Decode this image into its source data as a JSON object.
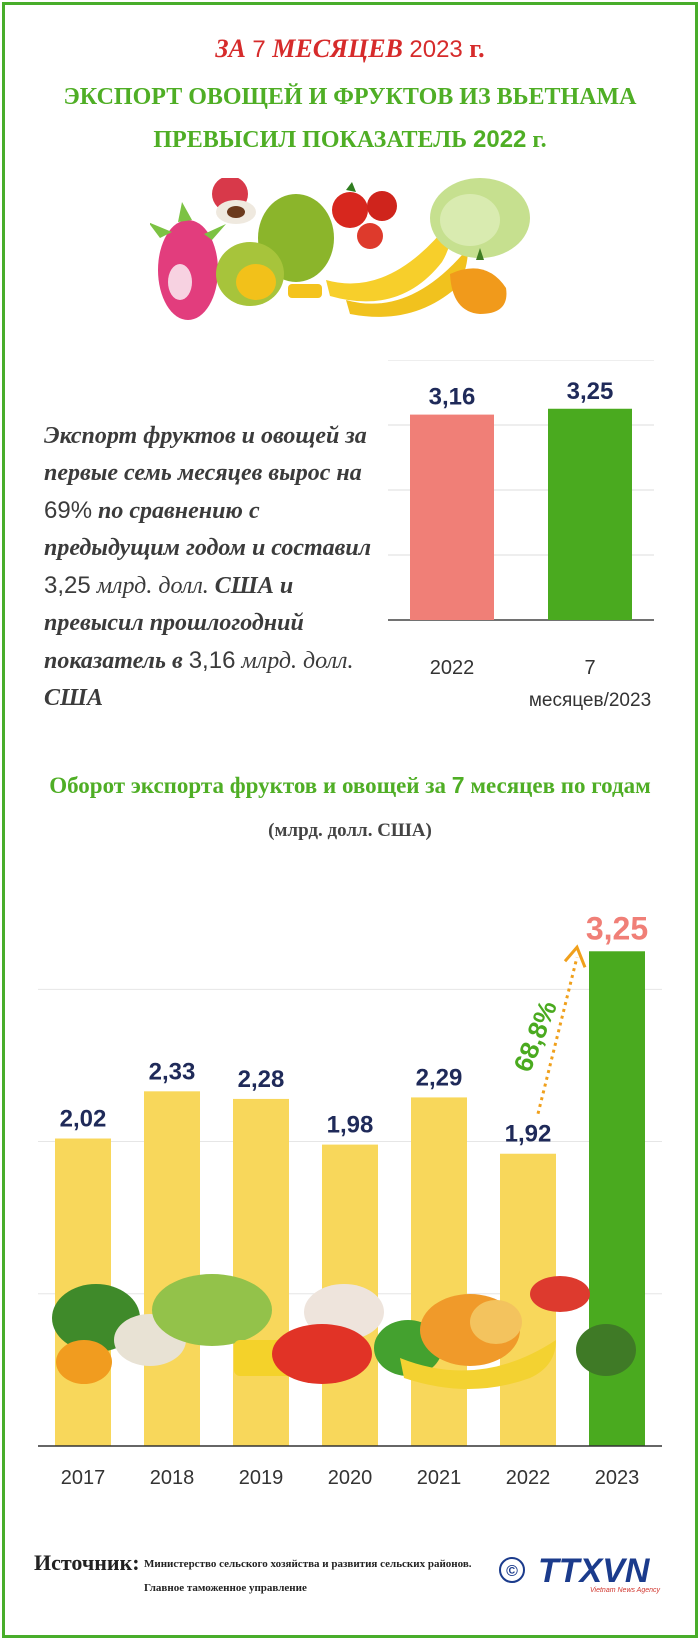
{
  "header": {
    "line1_prefix": "ЗА",
    "line1_num": "7",
    "line1_mid": "МЕСЯЦЕВ",
    "line1_year": "2023",
    "line1_suffix": "г.",
    "line2": "ЭКСПОРТ ОВОЩЕЙ И ФРУКТОВ ИЗ ВЬЕТНАМА",
    "line3_prefix": "ПРЕВЫСИЛ ПОКАЗАТЕЛЬ",
    "line3_year": "2022",
    "line3_suffix": "г."
  },
  "summary": {
    "p1": "Экспорт фруктов и овощей за первые семь месяцев вырос на",
    "pct": "69%",
    "p2": "по сравнению с предыдущим годом и составил",
    "val_2023": "3,25",
    "p3a": "млрд. долл.",
    "p3b": "США и превысил прошлогодний показатель в",
    "val_2022": "3,16",
    "p4a": "млрд. долл.",
    "p4b": "США"
  },
  "colors": {
    "green": "#4aaa1f",
    "pink": "#f07f77",
    "yellow": "#f8d75b",
    "navy": "#1f2a59",
    "salmon_value": "#f07f77"
  },
  "chart_data": [
    {
      "type": "bar",
      "categories": [
        "2022",
        "7 месяцев/2023"
      ],
      "values": [
        3.16,
        3.25
      ],
      "value_labels": [
        "3,16",
        "3,25"
      ],
      "category_labels": [
        "2022",
        "7",
        "месяцев/2023"
      ],
      "grid": true,
      "colors": [
        "#f07f77",
        "#4aaa1f"
      ]
    },
    {
      "type": "bar",
      "title": "Оборот экспорта фруктов и овощей за 7 месяцев по годам",
      "title_parts": [
        "Оборот экспорта фруктов и овощей за",
        "7",
        "месяцев по годам"
      ],
      "unit": "(млрд. долл. США)",
      "categories": [
        "2017",
        "2018",
        "2019",
        "2020",
        "2021",
        "2022",
        "2023"
      ],
      "values": [
        2.02,
        2.33,
        2.28,
        1.98,
        2.29,
        1.92,
        3.25
      ],
      "value_labels": [
        "2,02",
        "2,33",
        "2,28",
        "1,98",
        "2,29",
        "1,92",
        "3,25"
      ],
      "annotation": "68,8%",
      "grid": true
    }
  ],
  "footer": {
    "source_label": "Источник:",
    "source_line1": "Министерство сельского хозяйства и развития сельских районов.",
    "source_line2": "Главное таможенное управление",
    "logo_text": "TTXVN",
    "logo_subtext": "Vietnam News Agency",
    "copyright": "©"
  }
}
